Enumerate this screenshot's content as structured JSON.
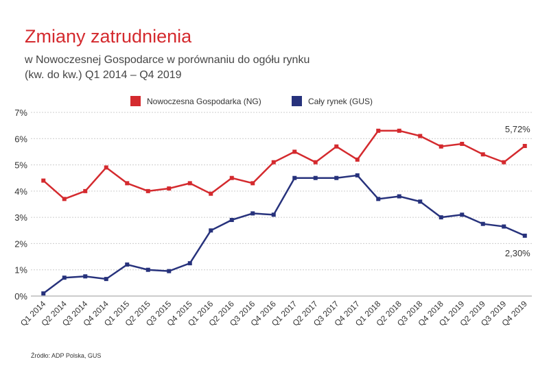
{
  "chart_data": {
    "type": "line",
    "title": "Zmiany zatrudnienia",
    "subtitle": [
      "w Nowoczesnej Gospodarce w porównaniu do ogółu rynku",
      "(kw. do kw.) Q1 2014 – Q4 2019"
    ],
    "source": "Źródło: ADP Polska, GUS",
    "categories": [
      "Q1 2014",
      "Q2 2014",
      "Q3 2014",
      "Q4 2014",
      "Q1 2015",
      "Q2 2015",
      "Q3 2015",
      "Q4 2015",
      "Q1 2016",
      "Q2 2016",
      "Q3 2016",
      "Q4 2016",
      "Q1 2017",
      "Q2 2017",
      "Q3 2017",
      "Q4 2017",
      "Q1 2018",
      "Q2 2018",
      "Q3 2018",
      "Q4 2018",
      "Q1 2019",
      "Q2 2019",
      "Q3 2019",
      "Q4 2019"
    ],
    "series": [
      {
        "name": "Nowoczesna Gospodarka (NG)",
        "color": "#d42a2e",
        "values": [
          4.4,
          3.7,
          4.0,
          4.9,
          4.3,
          4.0,
          4.1,
          4.3,
          3.9,
          4.5,
          4.3,
          5.1,
          5.5,
          5.1,
          5.7,
          5.2,
          6.3,
          6.3,
          6.1,
          5.7,
          5.8,
          5.4,
          5.1,
          5.72
        ],
        "value_labels": [
          null,
          null,
          null,
          null,
          null,
          null,
          null,
          null,
          null,
          null,
          null,
          null,
          null,
          null,
          null,
          null,
          null,
          null,
          null,
          null,
          null,
          null,
          null,
          "5,72%"
        ]
      },
      {
        "name": "Cały rynek (GUS)",
        "color": "#27327c",
        "values": [
          0.1,
          0.7,
          0.75,
          0.65,
          1.2,
          1.0,
          0.95,
          1.25,
          2.5,
          2.9,
          3.15,
          3.1,
          4.5,
          4.5,
          4.5,
          4.6,
          3.7,
          3.8,
          3.6,
          3.0,
          3.1,
          2.75,
          2.65,
          2.3
        ],
        "value_labels": [
          null,
          null,
          null,
          null,
          null,
          null,
          null,
          null,
          null,
          null,
          null,
          null,
          null,
          null,
          null,
          null,
          null,
          null,
          null,
          null,
          null,
          null,
          null,
          "2,30%"
        ]
      }
    ],
    "ylim": [
      0,
      7
    ],
    "yticks": [
      {
        "value": 0,
        "label": "0%"
      },
      {
        "value": 1,
        "label": "1%"
      },
      {
        "value": 2,
        "label": "2%"
      },
      {
        "value": 3,
        "label": "3%"
      },
      {
        "value": 4,
        "label": "4%"
      },
      {
        "value": 5,
        "label": "5%"
      },
      {
        "value": 6,
        "label": "6%"
      },
      {
        "value": 7,
        "label": "7%"
      }
    ],
    "grid": true,
    "legend": "top"
  }
}
